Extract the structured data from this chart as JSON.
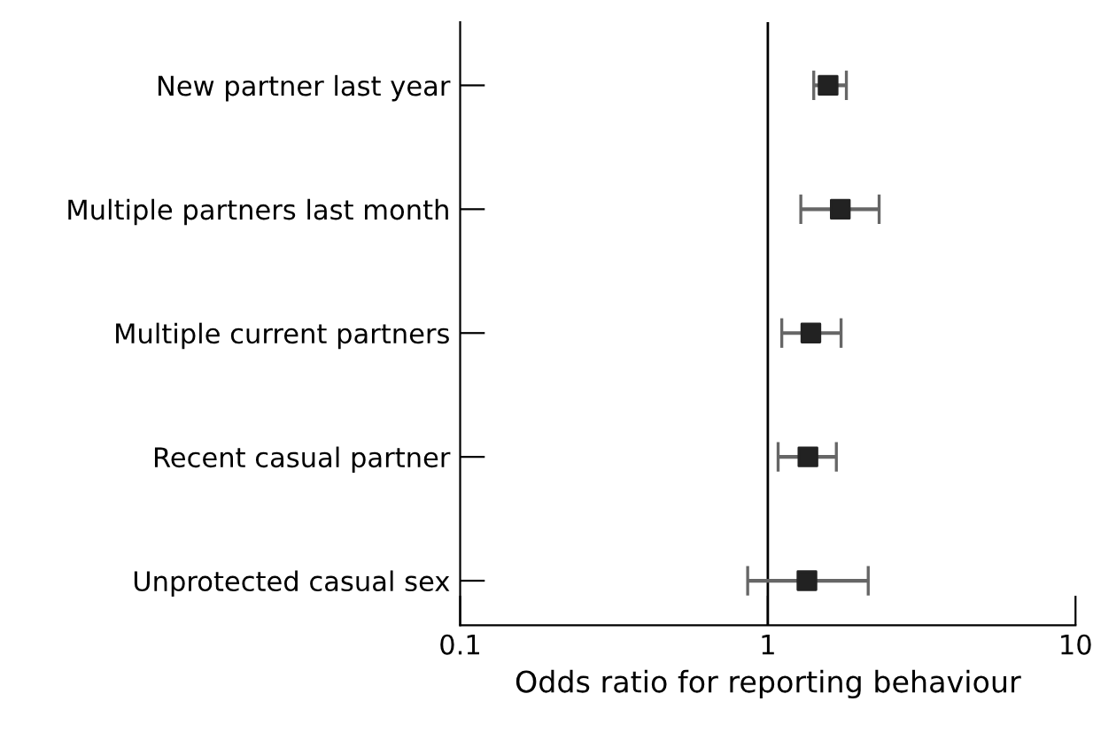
{
  "chart_data": {
    "type": "scatter",
    "orientation": "horizontal",
    "xlabel": "Odds ratio for reporting behaviour",
    "categories": [
      "New partner last year",
      "Multiple partners last month",
      "Multiple current partners",
      "Recent casual partner",
      "Unprotected casual sex"
    ],
    "values": [
      1.57,
      1.72,
      1.38,
      1.35,
      1.34
    ],
    "errors": [
      [
        1.41,
        1.8
      ],
      [
        1.28,
        2.3
      ],
      [
        1.11,
        1.73
      ],
      [
        1.08,
        1.67
      ],
      [
        0.86,
        2.12
      ]
    ],
    "color": "#222222",
    "marker": "square",
    "log": "x",
    "xlim": [
      0.1,
      10
    ],
    "xticks": [
      0.1,
      1,
      10
    ],
    "ref_lines": [
      {
        "axis": "x",
        "value": 1,
        "color": "#000000"
      }
    ],
    "grid": false,
    "legend": false
  }
}
